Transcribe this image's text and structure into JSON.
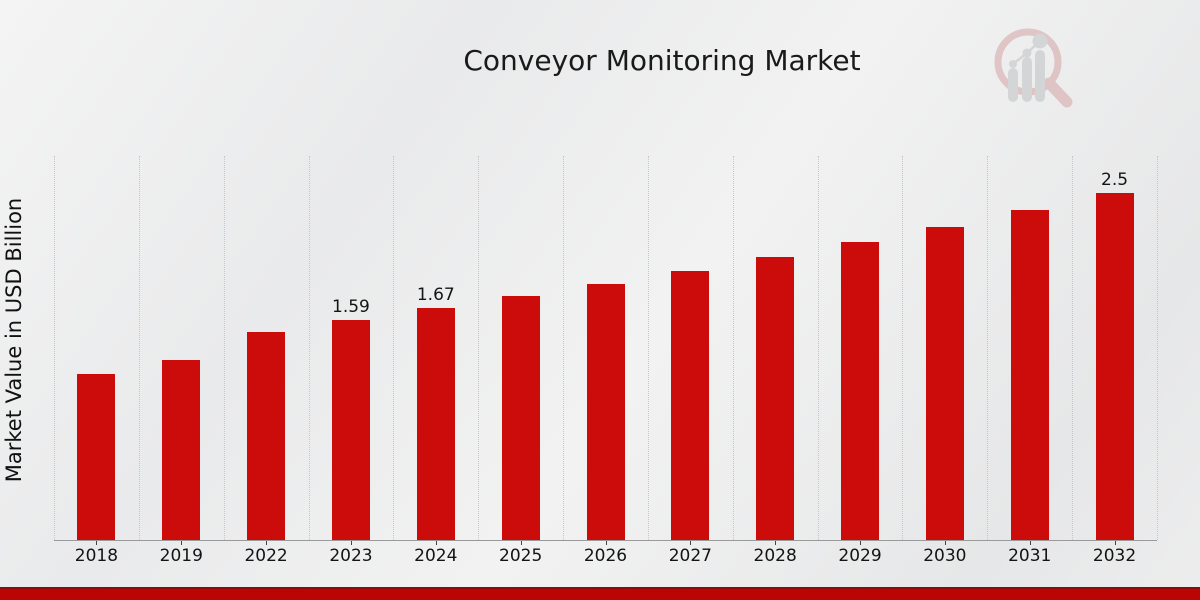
{
  "chart_data": {
    "type": "bar",
    "title": "Conveyor Monitoring Market",
    "ylabel": "Market Value in USD Billion",
    "xlabel": "",
    "categories": [
      "2018",
      "2019",
      "2022",
      "2023",
      "2024",
      "2025",
      "2026",
      "2027",
      "2028",
      "2029",
      "2030",
      "2031",
      "2032"
    ],
    "values": [
      1.2,
      1.3,
      1.5,
      1.59,
      1.67,
      1.76,
      1.85,
      1.94,
      2.04,
      2.15,
      2.26,
      2.38,
      2.5
    ],
    "annotations": [
      {
        "category": "2023",
        "text": "1.59"
      },
      {
        "category": "2024",
        "text": "1.67"
      },
      {
        "category": "2032",
        "text": "2.5"
      }
    ],
    "ylim": [
      0,
      2.77
    ],
    "grid": "vertical-dotted",
    "legend": "none",
    "bar_color": "#cc0b0b"
  },
  "logo": {
    "icon": "magnifier-bar-chart-logo"
  },
  "footer": {
    "band_color": "#bb0505"
  },
  "colors": {
    "background": "#ebecec",
    "gridline": "#c6c6c6",
    "axis_line": "#9a9a9a",
    "text": "#1a1a1a",
    "logo_ring": "#cf9494",
    "logo_bars": "#b4b7bb"
  }
}
